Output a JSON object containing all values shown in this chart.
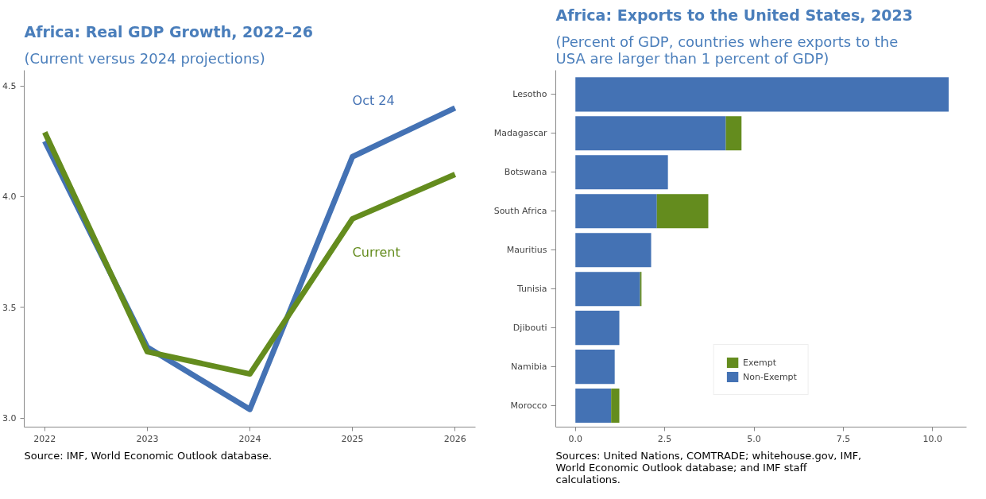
{
  "chart_data": [
    {
      "type": "line",
      "title": "Africa: Real GDP Growth, 2022–26",
      "subtitle": "(Current versus 2024 projections)",
      "x": [
        2022,
        2023,
        2024,
        2025,
        2026
      ],
      "series": [
        {
          "name": "Oct 24",
          "color": "#4472b4",
          "values": [
            4.25,
            3.32,
            3.04,
            4.18,
            4.4
          ]
        },
        {
          "name": "Current",
          "color": "#648c1e",
          "values": [
            4.29,
            3.3,
            3.2,
            3.9,
            4.1
          ]
        }
      ],
      "xlim": [
        2021.8,
        2026.2
      ],
      "xticks": [
        2022,
        2023,
        2024,
        2025,
        2026
      ],
      "ylim": [
        2.96,
        4.57
      ],
      "yticks": [
        {
          "value": 3.0,
          "label": "3.0"
        },
        {
          "value": 3.5,
          "label": "3.5"
        },
        {
          "value": 4.0,
          "label": "4.0"
        },
        {
          "value": 4.5,
          "label": "4.5"
        }
      ],
      "grid": false,
      "legend": false,
      "line_style": "solid",
      "marker": "none",
      "annotations": [
        "Source: IMF, World Economic Outlook database."
      ]
    },
    {
      "type": "bar",
      "orientation": "horizontal",
      "stacked": true,
      "title": "Africa: Exports to the United States, 2023",
      "subtitle": "(Percent of GDP, countries where exports to the USA are larger than 1 percent of GDP)",
      "categories": [
        "Lesotho",
        "Madagascar",
        "Botswana",
        "South Africa",
        "Mauritius",
        "Tunisia",
        "Djibouti",
        "Namibia",
        "Morocco"
      ],
      "series": [
        {
          "name": "Non-Exempt",
          "color": "#4472b4",
          "values": [
            10.45,
            4.21,
            2.59,
            2.28,
            2.12,
            1.81,
            1.23,
            1.1,
            1.0
          ]
        },
        {
          "name": "Exempt",
          "color": "#648c1e",
          "values": [
            0,
            0.44,
            0,
            1.44,
            0,
            0.04,
            0,
            0,
            0.23
          ]
        }
      ],
      "xlim": [
        -0.55,
        10.95
      ],
      "xticks": [
        {
          "value": 0,
          "label": "0.0"
        },
        {
          "value": 2.5,
          "label": "2.5"
        },
        {
          "value": 5,
          "label": "5.0"
        },
        {
          "value": 7.5,
          "label": "7.5"
        },
        {
          "value": 10,
          "label": "10.0"
        }
      ],
      "grid": false,
      "legend": "bottom",
      "annotations": [
        "Sources: United Nations, COMTRADE; whitehouse.gov, IMF, World Economic Outlook database; and IMF staff calculations."
      ]
    }
  ]
}
